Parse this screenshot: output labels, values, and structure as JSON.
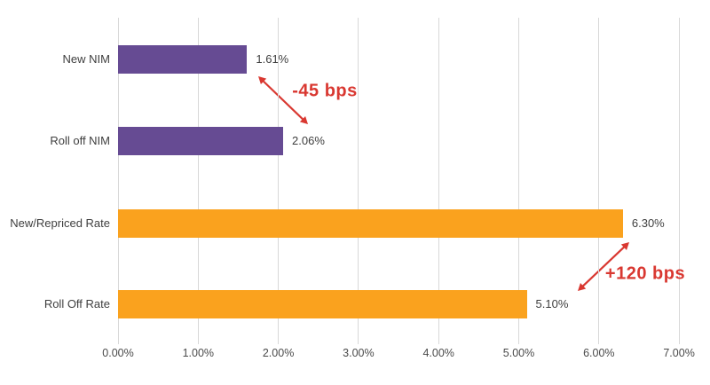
{
  "chart_data": {
    "type": "bar",
    "orientation": "horizontal",
    "title": "",
    "xlabel": "",
    "ylabel": "",
    "categories": [
      "New NIM",
      "Roll off NIM",
      "New/Repriced Rate",
      "Roll Off Rate"
    ],
    "values": [
      1.61,
      2.06,
      6.3,
      5.1
    ],
    "value_labels": [
      "1.61%",
      "2.06%",
      "6.30%",
      "5.10%"
    ],
    "bar_colors": [
      "#664b93",
      "#664b93",
      "#faa21e",
      "#faa21e"
    ],
    "x_axis": {
      "min": 0,
      "max": 7,
      "step": 1,
      "tick_labels": [
        "0.00%",
        "1.00%",
        "2.00%",
        "3.00%",
        "4.00%",
        "5.00%",
        "6.00%",
        "7.00%"
      ]
    },
    "grid": true,
    "legend": false,
    "annotations": [
      {
        "label": "-45 bps",
        "meaning": "change from Roll off NIM to New NIM"
      },
      {
        "label": "+120 bps",
        "meaning": "change from Roll Off Rate to New/Repriced Rate"
      }
    ],
    "colors": {
      "purple": "#664b93",
      "orange": "#faa21e",
      "annotation_red": "#d93831",
      "grid": "#d8d8d8",
      "text": "#3e3e3e"
    }
  }
}
